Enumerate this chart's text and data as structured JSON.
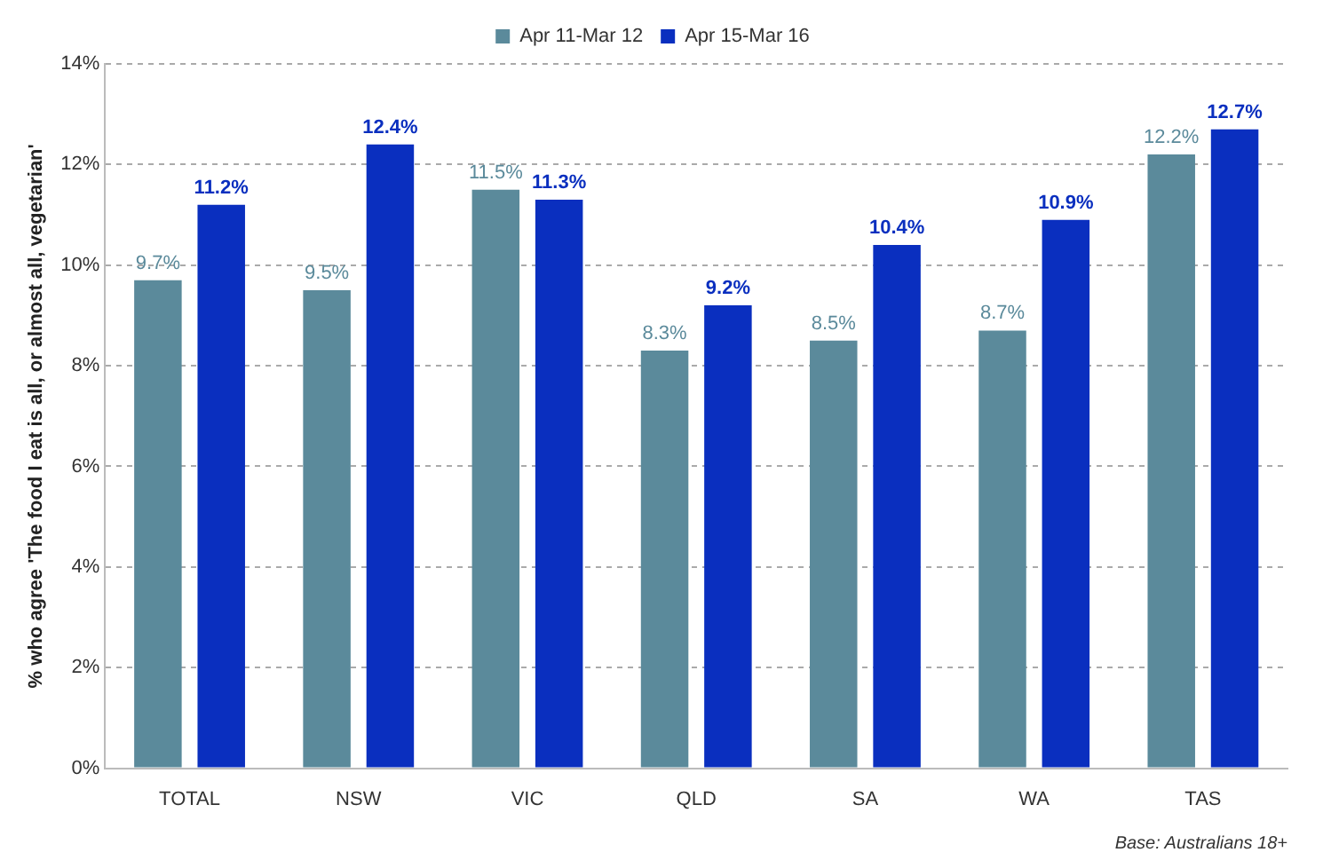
{
  "chart_data": {
    "type": "bar",
    "ylabel": "% who agree 'The food I eat is all, or almost all, vegetarian'",
    "categories": [
      "TOTAL",
      "NSW",
      "VIC",
      "QLD",
      "SA",
      "WA",
      "TAS"
    ],
    "series": [
      {
        "name": "Apr 11-Mar 12",
        "color": "#5b8a9b",
        "values": [
          9.7,
          9.5,
          11.5,
          8.3,
          8.5,
          8.7,
          12.2
        ],
        "value_labels": [
          "9.7%",
          "9.5%",
          "11.5%",
          "8.3%",
          "8.5%",
          "8.7%",
          "12.2%"
        ]
      },
      {
        "name": "Apr 15-Mar 16",
        "color": "#0a2fbf",
        "values": [
          11.2,
          12.4,
          11.3,
          9.2,
          10.4,
          10.9,
          12.7
        ],
        "value_labels": [
          "11.2%",
          "12.4%",
          "11.3%",
          "9.2%",
          "10.4%",
          "10.9%",
          "12.7%"
        ]
      }
    ],
    "ylim": [
      0,
      14
    ],
    "yticks": [
      {
        "value": 0,
        "label": "0%"
      },
      {
        "value": 2,
        "label": "2%"
      },
      {
        "value": 4,
        "label": "4%"
      },
      {
        "value": 6,
        "label": "6%"
      },
      {
        "value": 8,
        "label": "8%"
      },
      {
        "value": 10,
        "label": "10%"
      },
      {
        "value": 12,
        "label": "12%"
      },
      {
        "value": 14,
        "label": "14%"
      }
    ],
    "grid": "y",
    "legend": "top",
    "annotations": [
      "Base: Australians 18+"
    ]
  }
}
